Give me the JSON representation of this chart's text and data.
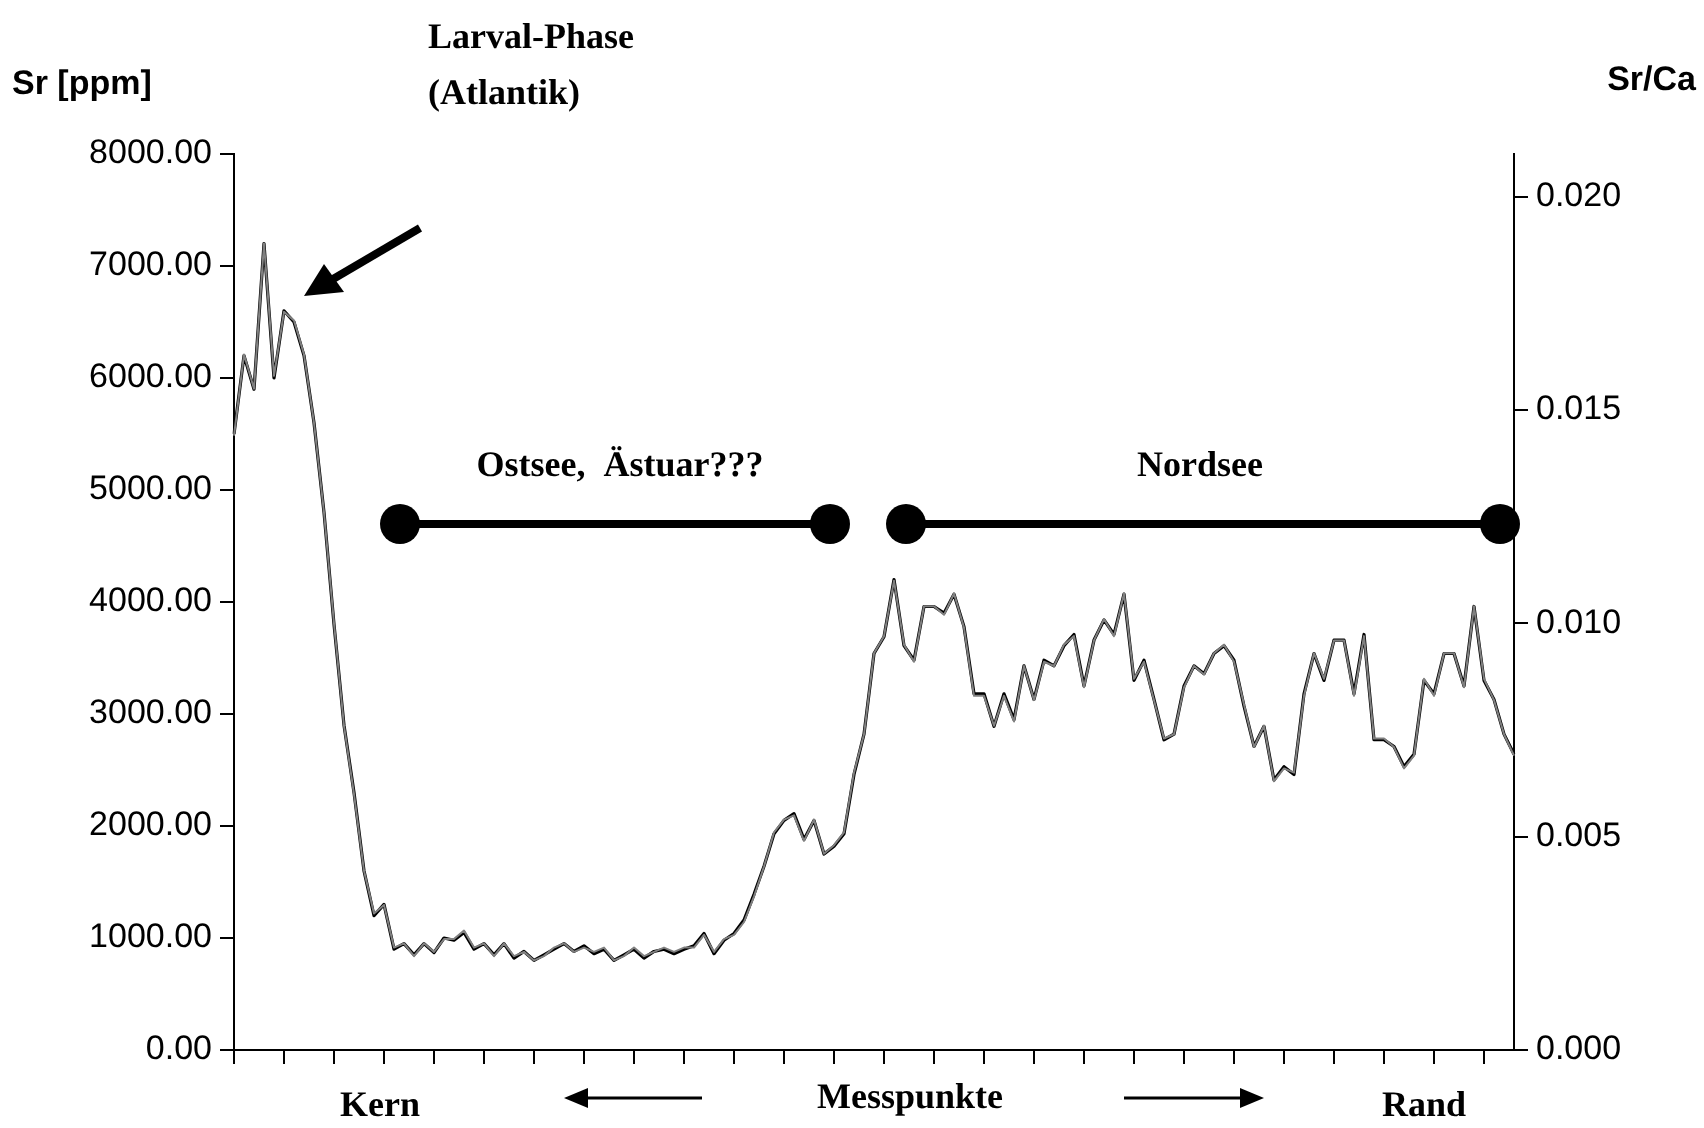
{
  "chart_data": {
    "type": "line",
    "ylabel": "Sr [ppm]",
    "y2label": "Sr/Ca",
    "xlabel": "Messpunkte",
    "annotations": [
      "Larval-Phase (Atlantik)",
      "Ostsee,  Ästuar???",
      "Nordsee",
      "Kern",
      "Rand"
    ],
    "categories": [
      null,
      null,
      null,
      null,
      null,
      null,
      null,
      null,
      null,
      null,
      null,
      null,
      null,
      null,
      null,
      null,
      null,
      null,
      null,
      null,
      null,
      null,
      null,
      null,
      null,
      null,
      null,
      null,
      null,
      null,
      null,
      null,
      null,
      null,
      null,
      null,
      null,
      null,
      null,
      null,
      null,
      null,
      null,
      null,
      null,
      null,
      null,
      null,
      null,
      null,
      null,
      null,
      null,
      null,
      null,
      null,
      null,
      null,
      null,
      null,
      null,
      null,
      null,
      null,
      null,
      null,
      null,
      null,
      null,
      null,
      null,
      null,
      null,
      null,
      null,
      null,
      null,
      null,
      null,
      null,
      null,
      null,
      null,
      null,
      null,
      null,
      null,
      null,
      null,
      null,
      null,
      null,
      null,
      null,
      null,
      null,
      null,
      null,
      null,
      null,
      null,
      null,
      null,
      null,
      null,
      null,
      null,
      null,
      null,
      null,
      null,
      null,
      null,
      null,
      null,
      null,
      null,
      null,
      null,
      null,
      null,
      null,
      null,
      null,
      null,
      null,
      null,
      null,
      null
    ],
    "series": [
      {
        "color": "#808080",
        "axis": "y2",
        "values": [
          0.0144,
          0.0163,
          0.0155,
          0.0189,
          0.0158,
          0.0173,
          0.0171,
          0.0163,
          0.0147,
          0.0126,
          0.01,
          0.0076,
          0.006,
          0.0042,
          0.0032,
          0.0034,
          0.0024,
          0.0025,
          0.0022,
          0.0025,
          0.0023,
          0.0026,
          0.0026,
          0.0028,
          0.0024,
          0.0025,
          0.0022,
          0.0025,
          0.0022,
          0.0023,
          0.0021,
          0.0022,
          0.0024,
          0.0025,
          0.0023,
          0.0024,
          0.0023,
          0.0024,
          0.0021,
          0.0022,
          0.0024,
          0.0022,
          0.0023,
          0.0024,
          0.0023,
          0.0024,
          0.0024,
          0.0027,
          0.0023,
          0.0026,
          0.0027,
          0.003,
          0.0036,
          0.0043,
          0.0051,
          0.0054,
          0.0055,
          0.0049,
          0.0054,
          0.0046,
          0.0048,
          0.0051,
          0.0065,
          0.0074,
          0.0093,
          0.0097,
          0.011,
          0.0095,
          0.0091,
          0.0104,
          0.0104,
          0.0102,
          0.0107,
          0.0099,
          0.0083,
          0.0083,
          0.0076,
          0.0083,
          0.0077,
          0.009,
          0.0082,
          0.0091,
          0.009,
          0.0095,
          0.0097,
          0.0085,
          0.0096,
          0.0101,
          0.0097,
          0.0107,
          0.0087,
          0.0091,
          0.0082,
          0.0073,
          0.0074,
          0.0085,
          0.009,
          0.0088,
          0.0093,
          0.0095,
          0.0091,
          0.0081,
          0.0071,
          0.0076,
          0.0063,
          0.0066,
          0.0065,
          0.0083,
          0.0093,
          0.0087,
          0.0096,
          0.0096,
          0.0083,
          0.0097,
          0.0073,
          0.0073,
          0.0071,
          0.0066,
          0.0069,
          0.0087,
          0.0083,
          0.0093,
          0.0093,
          0.0085,
          0.0104,
          0.0087,
          0.0082,
          0.0074,
          0.0069
        ]
      },
      {
        "color": "#000000",
        "axis": "y",
        "values": [
          5500,
          6200,
          5900,
          7200,
          6000,
          6600,
          6500,
          6200,
          5600,
          4800,
          3800,
          2900,
          2300,
          1600,
          1200,
          1300,
          900,
          950,
          850,
          950,
          870,
          1000,
          980,
          1050,
          900,
          950,
          850,
          950,
          820,
          880,
          800,
          850,
          900,
          950,
          880,
          930,
          860,
          900,
          800,
          850,
          900,
          820,
          880,
          900,
          860,
          900,
          930,
          1040,
          860,
          980,
          1040,
          1160,
          1390,
          1640,
          1930,
          2050,
          2110,
          1880,
          2050,
          1750,
          1820,
          1930,
          2460,
          2820,
          3540,
          3690,
          4200,
          3610,
          3480,
          3960,
          3960,
          3900,
          4070,
          3780,
          3180,
          3180,
          2890,
          3180,
          2950,
          3430,
          3130,
          3480,
          3430,
          3610,
          3710,
          3250,
          3660,
          3840,
          3710,
          4070,
          3300,
          3480,
          3130,
          2770,
          2820,
          3250,
          3430,
          3360,
          3540,
          3610,
          3480,
          3070,
          2710,
          2890,
          2410,
          2530,
          2460,
          3180,
          3540,
          3300,
          3660,
          3660,
          3180,
          3710,
          2770,
          2770,
          2710,
          2530,
          2640,
          3300,
          3180,
          3540,
          3540,
          3250,
          3960,
          3300,
          3130,
          2820,
          2640
        ]
      }
    ],
    "ylim": [
      0,
      8000
    ],
    "yticks": [
      {
        "value": 0,
        "label": "0.00"
      },
      {
        "value": 1000,
        "label": "1000.00"
      },
      {
        "value": 2000,
        "label": "2000.00"
      },
      {
        "value": 3000,
        "label": "3000.00"
      },
      {
        "value": 4000,
        "label": "4000.00"
      },
      {
        "value": 5000,
        "label": "5000.00"
      },
      {
        "value": 6000,
        "label": "6000.00"
      },
      {
        "value": 7000,
        "label": "7000.00"
      },
      {
        "value": 8000,
        "label": "8000.00"
      }
    ],
    "y2lim": [
      0,
      0.021
    ],
    "y2ticks": [
      {
        "value": 0,
        "label": "0.000"
      },
      {
        "value": 0.005,
        "label": "0.005"
      },
      {
        "value": 0.01,
        "label": "0.010"
      },
      {
        "value": 0.015,
        "label": "0.015"
      },
      {
        "value": 0.02,
        "label": "0.020"
      }
    ],
    "tick_labels": "y",
    "legend": false
  }
}
